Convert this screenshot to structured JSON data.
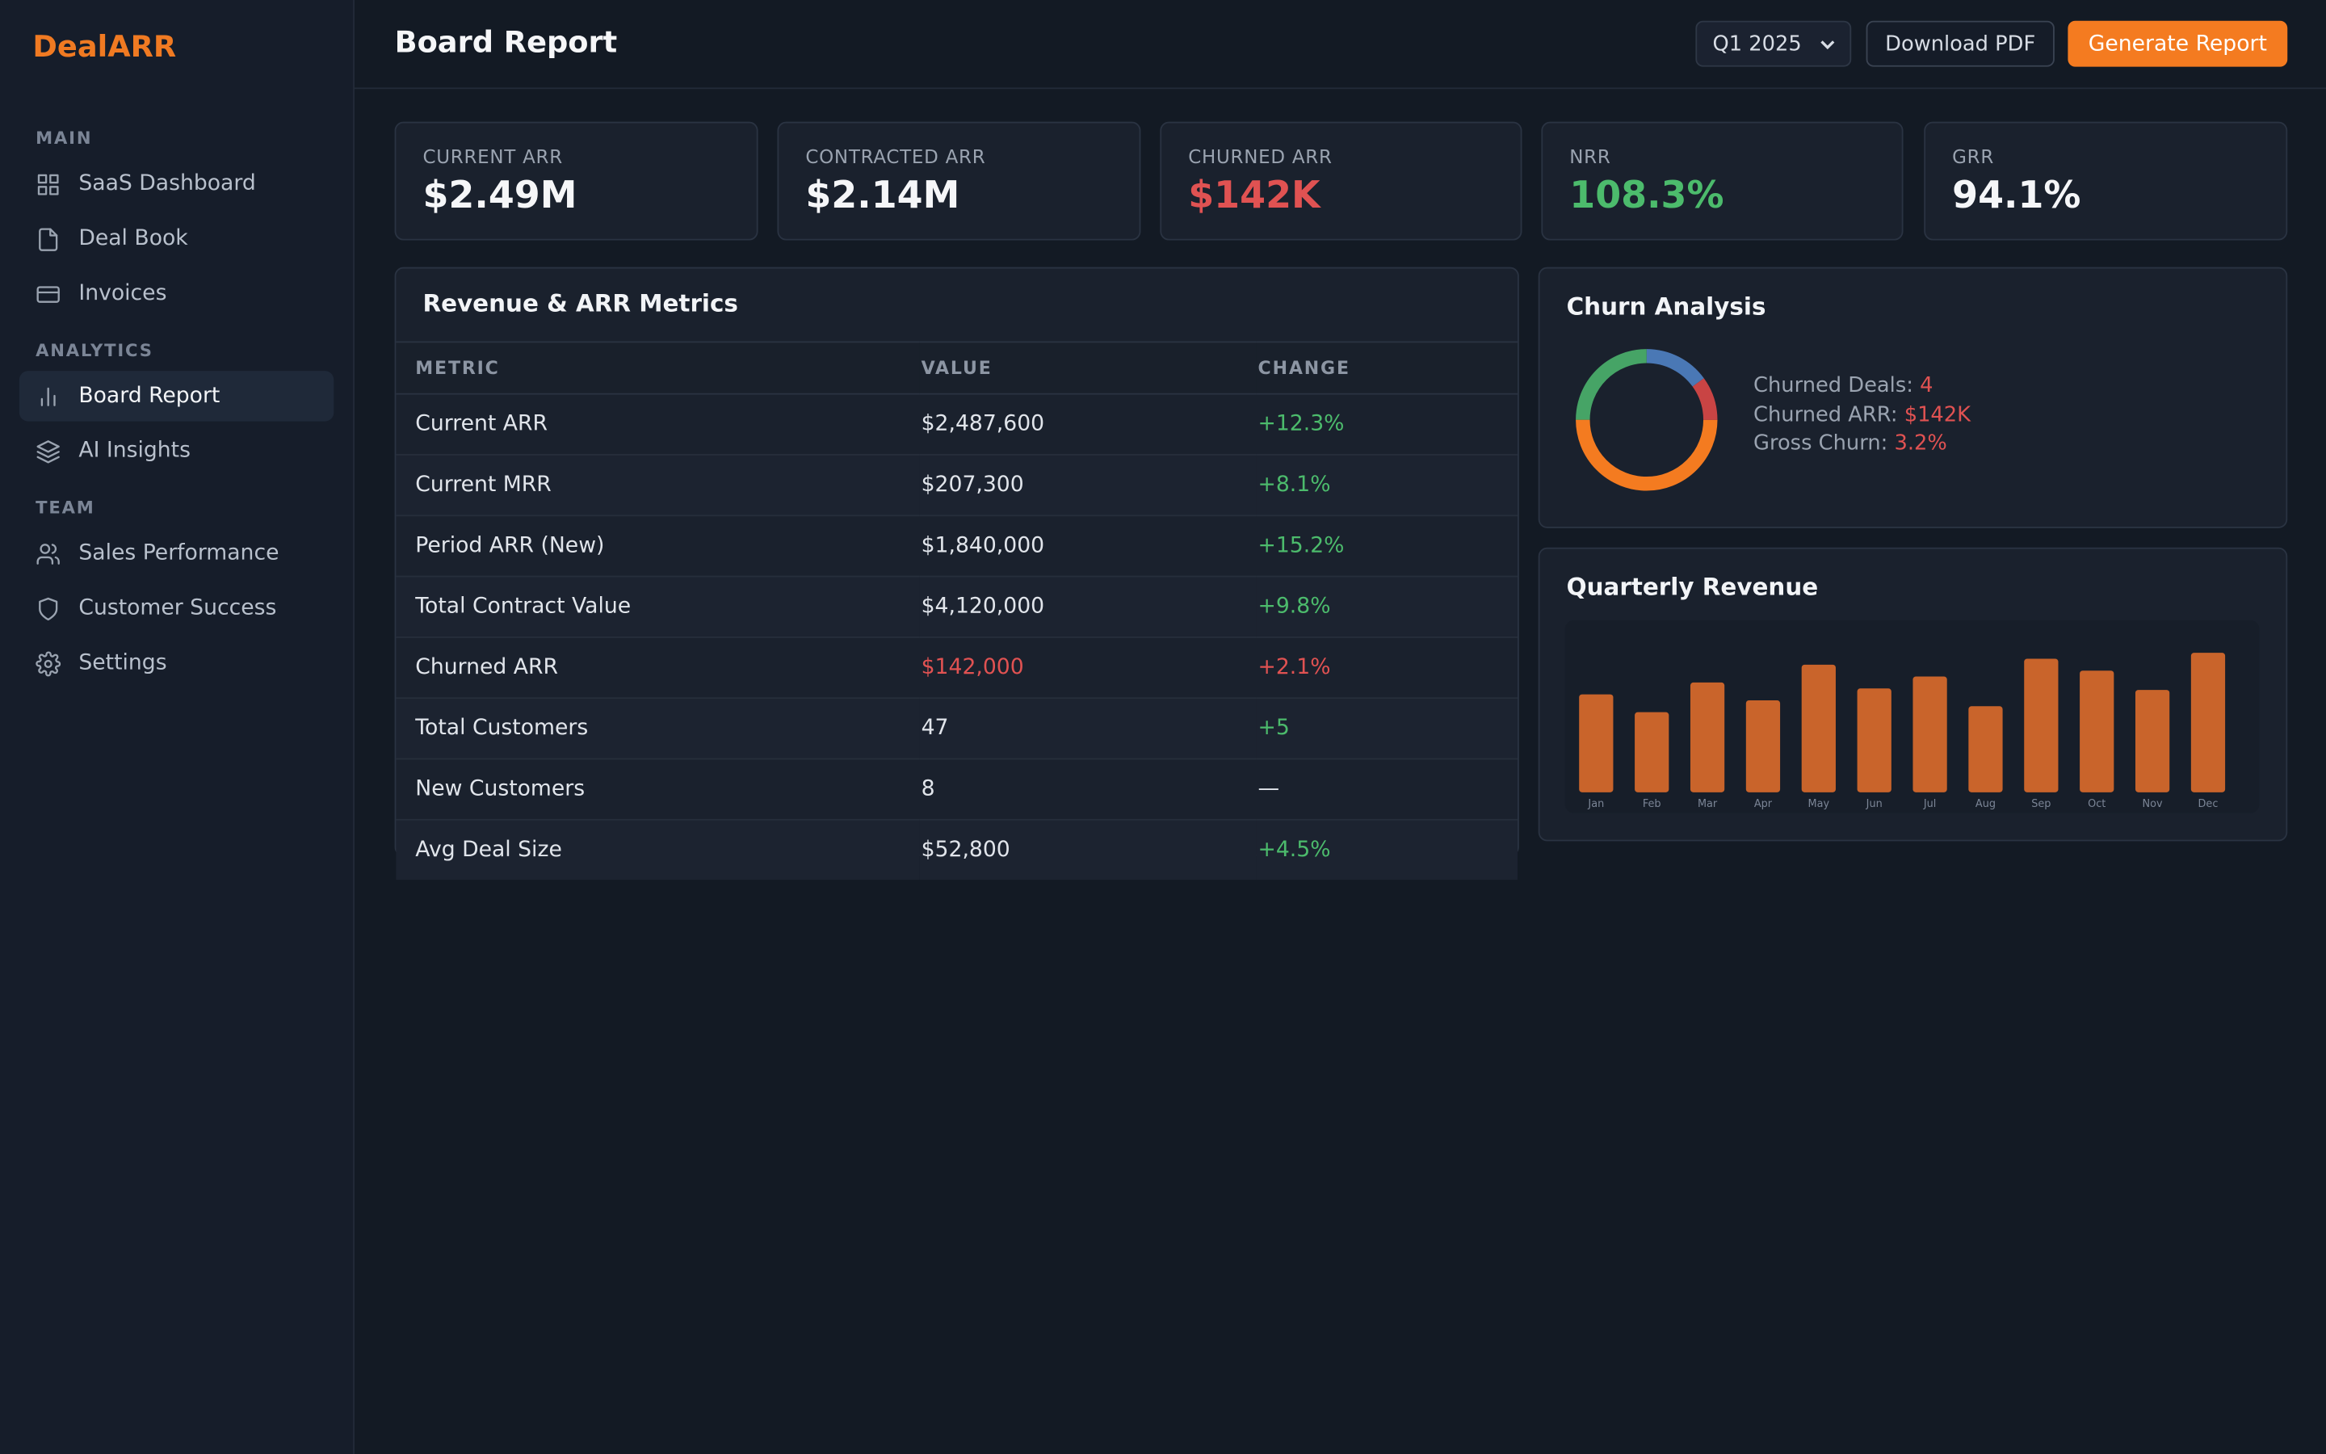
{
  "sidebar": {
    "logo": "DealARR",
    "sections": [
      {
        "title": "MAIN",
        "items": [
          "SaaS Dashboard",
          "Deal Book",
          "Invoices"
        ]
      },
      {
        "title": "ANALYTICS",
        "items": [
          "Board Report",
          "AI Insights"
        ]
      },
      {
        "title": "TEAM",
        "items": [
          "Sales Performance",
          "Customer Success",
          "Settings"
        ]
      }
    ]
  },
  "header": {
    "title": "Board Report",
    "period": "Q1 2025",
    "buttons": [
      "Download PDF",
      "Generate Report"
    ]
  },
  "kpis": [
    {
      "label": "CURRENT ARR",
      "value": "$2.49M"
    },
    {
      "label": "CONTRACTED ARR",
      "value": "$2.14M"
    },
    {
      "label": "CHURNED ARR",
      "value": "$142K"
    },
    {
      "label": "NRR",
      "value": "108.3%"
    },
    {
      "label": "GRR",
      "value": "94.1%"
    }
  ],
  "table": {
    "title": "Revenue & ARR Metrics",
    "columns": [
      "METRIC",
      "VALUE",
      "CHANGE"
    ],
    "rows": [
      [
        "Current ARR",
        "$2,487,600",
        "+12.3%"
      ],
      [
        "Current MRR",
        "$207,300",
        "+8.1%"
      ],
      [
        "Period ARR (New)",
        "$1,840,000",
        "+15.2%"
      ],
      [
        "Total Contract Value",
        "$4,120,000",
        "+9.8%"
      ],
      [
        "Churned ARR",
        "$142,000",
        "+2.1%"
      ],
      [
        "Total Customers",
        "47",
        "+5"
      ],
      [
        "New Customers",
        "8",
        "—"
      ],
      [
        "Avg Deal Size",
        "$52,800",
        "+4.5%"
      ]
    ]
  },
  "churn": {
    "stats": [
      {
        "label": "Churned Deals:",
        "value": "4"
      },
      {
        "label": "Churned ARR:",
        "value": "$142K"
      },
      {
        "label": "Gross Churn:",
        "value": "3.2%"
      }
    ]
  },
  "chart_data": [
    {
      "type": "pie",
      "title": "Churn Analysis",
      "donut": true,
      "values": [
        15,
        10,
        50,
        25
      ],
      "colors": [
        "#4a78b5",
        "#c94444",
        "#f47b20",
        "#46a466"
      ]
    },
    {
      "type": "bar",
      "title": "Quarterly Revenue",
      "categories": [
        "Jan",
        "Feb",
        "Mar",
        "Apr",
        "May",
        "Jun",
        "Jul",
        "Aug",
        "Sep",
        "Oct",
        "Nov",
        "Dec"
      ],
      "values": [
        66,
        54,
        74,
        62,
        86,
        70,
        78,
        58,
        90,
        82,
        69,
        94
      ],
      "color": "#c9642b",
      "ylim": [
        0,
        100
      ]
    }
  ]
}
